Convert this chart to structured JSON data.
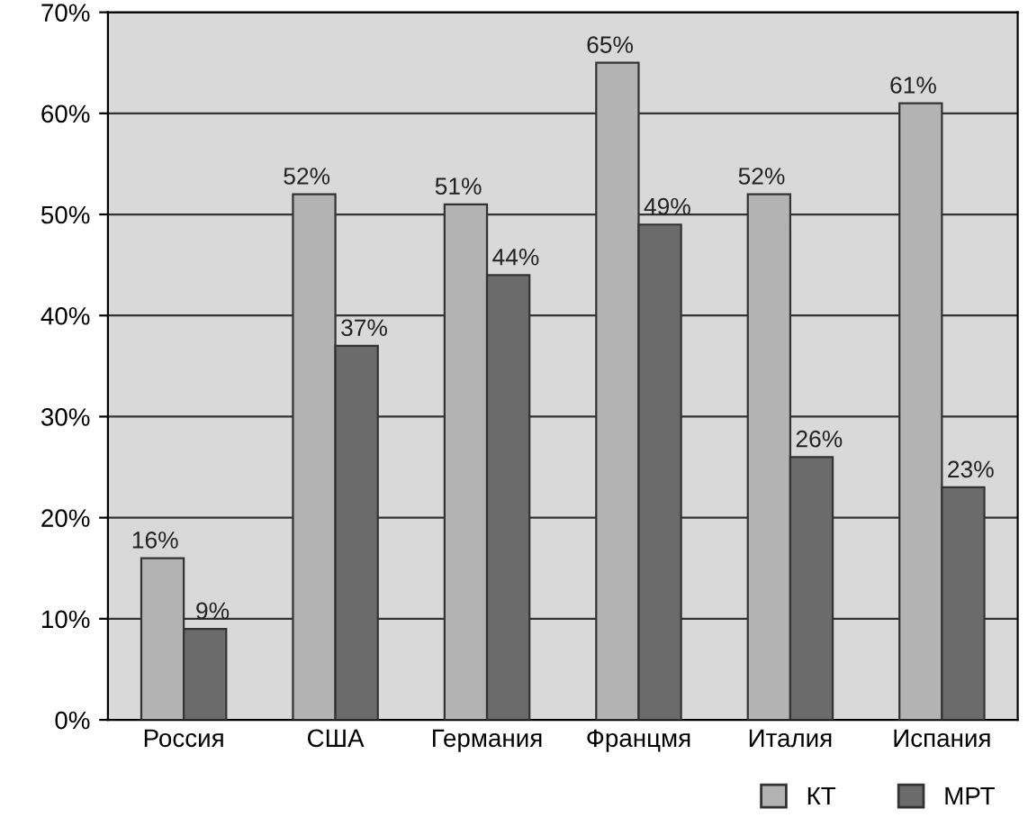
{
  "chart_data": {
    "type": "bar",
    "categories": [
      "Россия",
      "США",
      "Германия",
      "Францмя",
      "Италия",
      "Испания"
    ],
    "series": [
      {
        "name": "КТ",
        "color": "#b3b3b3",
        "values": [
          16,
          52,
          51,
          65,
          52,
          61
        ],
        "value_labels": [
          "16%",
          "52%",
          "51%",
          "65%",
          "52%",
          "61%"
        ]
      },
      {
        "name": "МРТ",
        "color": "#6b6b6b",
        "values": [
          9,
          37,
          44,
          49,
          26,
          23
        ],
        "value_labels": [
          "9%",
          "37%",
          "44%",
          "49%",
          "26%",
          "23%"
        ]
      }
    ],
    "ylim": [
      0,
      70
    ],
    "yticks": [
      {
        "value": 0,
        "label": "0%"
      },
      {
        "value": 10,
        "label": "10%"
      },
      {
        "value": 20,
        "label": "20%"
      },
      {
        "value": 30,
        "label": "30%"
      },
      {
        "value": 40,
        "label": "40%"
      },
      {
        "value": 50,
        "label": "50%"
      },
      {
        "value": 60,
        "label": "60%"
      },
      {
        "value": 70,
        "label": "70%"
      }
    ],
    "grid": "y",
    "legend": "bottom right"
  }
}
